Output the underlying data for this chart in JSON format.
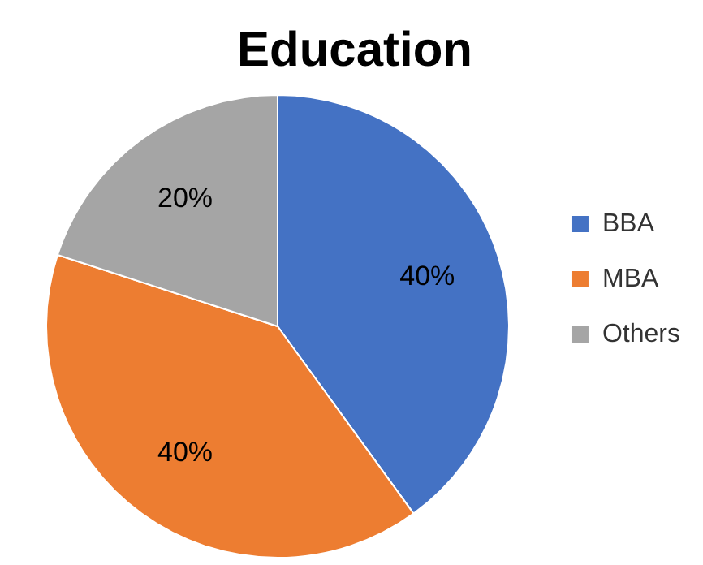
{
  "chart_data": {
    "type": "pie",
    "title": "Education",
    "categories": [
      "BBA",
      "MBA",
      "Others"
    ],
    "values": [
      40,
      40,
      20
    ],
    "colors": [
      "#4472c4",
      "#ed7d31",
      "#a5a5a5"
    ],
    "value_labels": [
      "40%",
      "40%",
      "20%"
    ],
    "legend": "right"
  }
}
